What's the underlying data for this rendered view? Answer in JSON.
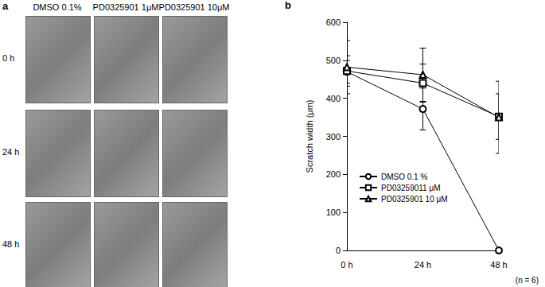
{
  "images": {
    "label": "a",
    "columns": [
      "DMSO 0.1%",
      "PD0325901 1μM",
      "PD0325901 10μM"
    ],
    "rows": [
      "0 h",
      "24 h",
      "48 h"
    ]
  },
  "chart_data": {
    "type": "line",
    "label": "b",
    "categories": [
      "0 h",
      "24 h",
      "48 h"
    ],
    "series": [
      {
        "name": "DMSO 0.1 %",
        "color": "#000000",
        "marker": "circle",
        "values": [
          470,
          372,
          0
        ],
        "errors": [
          30,
          55,
          0
        ]
      },
      {
        "name": "PD03259011 μM",
        "color": "#000000",
        "marker": "square",
        "values": [
          472,
          440,
          352
        ],
        "errors": [
          40,
          50,
          60
        ]
      },
      {
        "name": "PD0325901 10 μM",
        "color": "#000000",
        "marker": "triangle",
        "values": [
          482,
          462,
          350
        ],
        "errors": [
          70,
          70,
          95
        ]
      }
    ],
    "y_label": "Scratch width (μm)",
    "ylim": [
      0,
      600
    ],
    "yticks": [
      0,
      100,
      200,
      300,
      400,
      500,
      600
    ],
    "grid": false,
    "legend": "lower left",
    "annotation": "(n = 6)"
  }
}
